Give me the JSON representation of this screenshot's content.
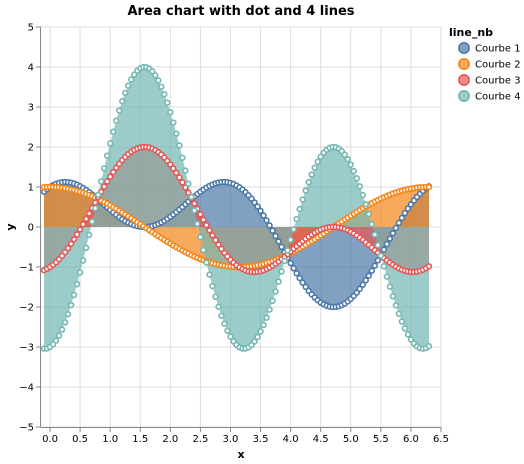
{
  "chart_data": {
    "type": "area",
    "title": "Area chart with dot and 4 lines",
    "xlabel": "x",
    "ylabel": "y",
    "xlim": [
      -0.15,
      6.5
    ],
    "ylim": [
      -5,
      5
    ],
    "x_ticks": [
      0,
      0.5,
      1,
      1.5,
      2,
      2.5,
      3,
      3.5,
      4,
      4.5,
      5,
      5.5,
      6,
      6.5
    ],
    "x_tick_labels": [
      "0.0",
      "0.5",
      "1.0",
      "1.5",
      "2.0",
      "2.5",
      "3.0",
      "3.5",
      "4.0",
      "4.5",
      "5.0",
      "5.5",
      "6.0",
      "6.5"
    ],
    "y_ticks": [
      -5,
      -4,
      -3,
      -2,
      -1,
      0,
      1,
      2,
      3,
      4,
      5
    ],
    "y_tick_labels": [
      "−5",
      "−4",
      "−3",
      "−2",
      "−1",
      "0",
      "1",
      "2",
      "3",
      "4",
      "5"
    ],
    "grid": true,
    "legend": {
      "title": "line_nb",
      "position": "right"
    },
    "x_range": {
      "start": -0.1,
      "end": 6.3,
      "step": 0.05
    },
    "series": [
      {
        "name": "Courbe 1",
        "color": "#4c78a8",
        "formula": "sin(x) + cos(2x)"
      },
      {
        "name": "Courbe 2",
        "color": "#f58518",
        "formula": "cos(x)"
      },
      {
        "name": "Courbe 3",
        "color": "#e45756",
        "formula": "sin(x) - cos(2x)"
      },
      {
        "name": "Courbe 4",
        "color": "#72b7b2",
        "formula": "sin(x) - 3cos(2x)"
      }
    ]
  }
}
